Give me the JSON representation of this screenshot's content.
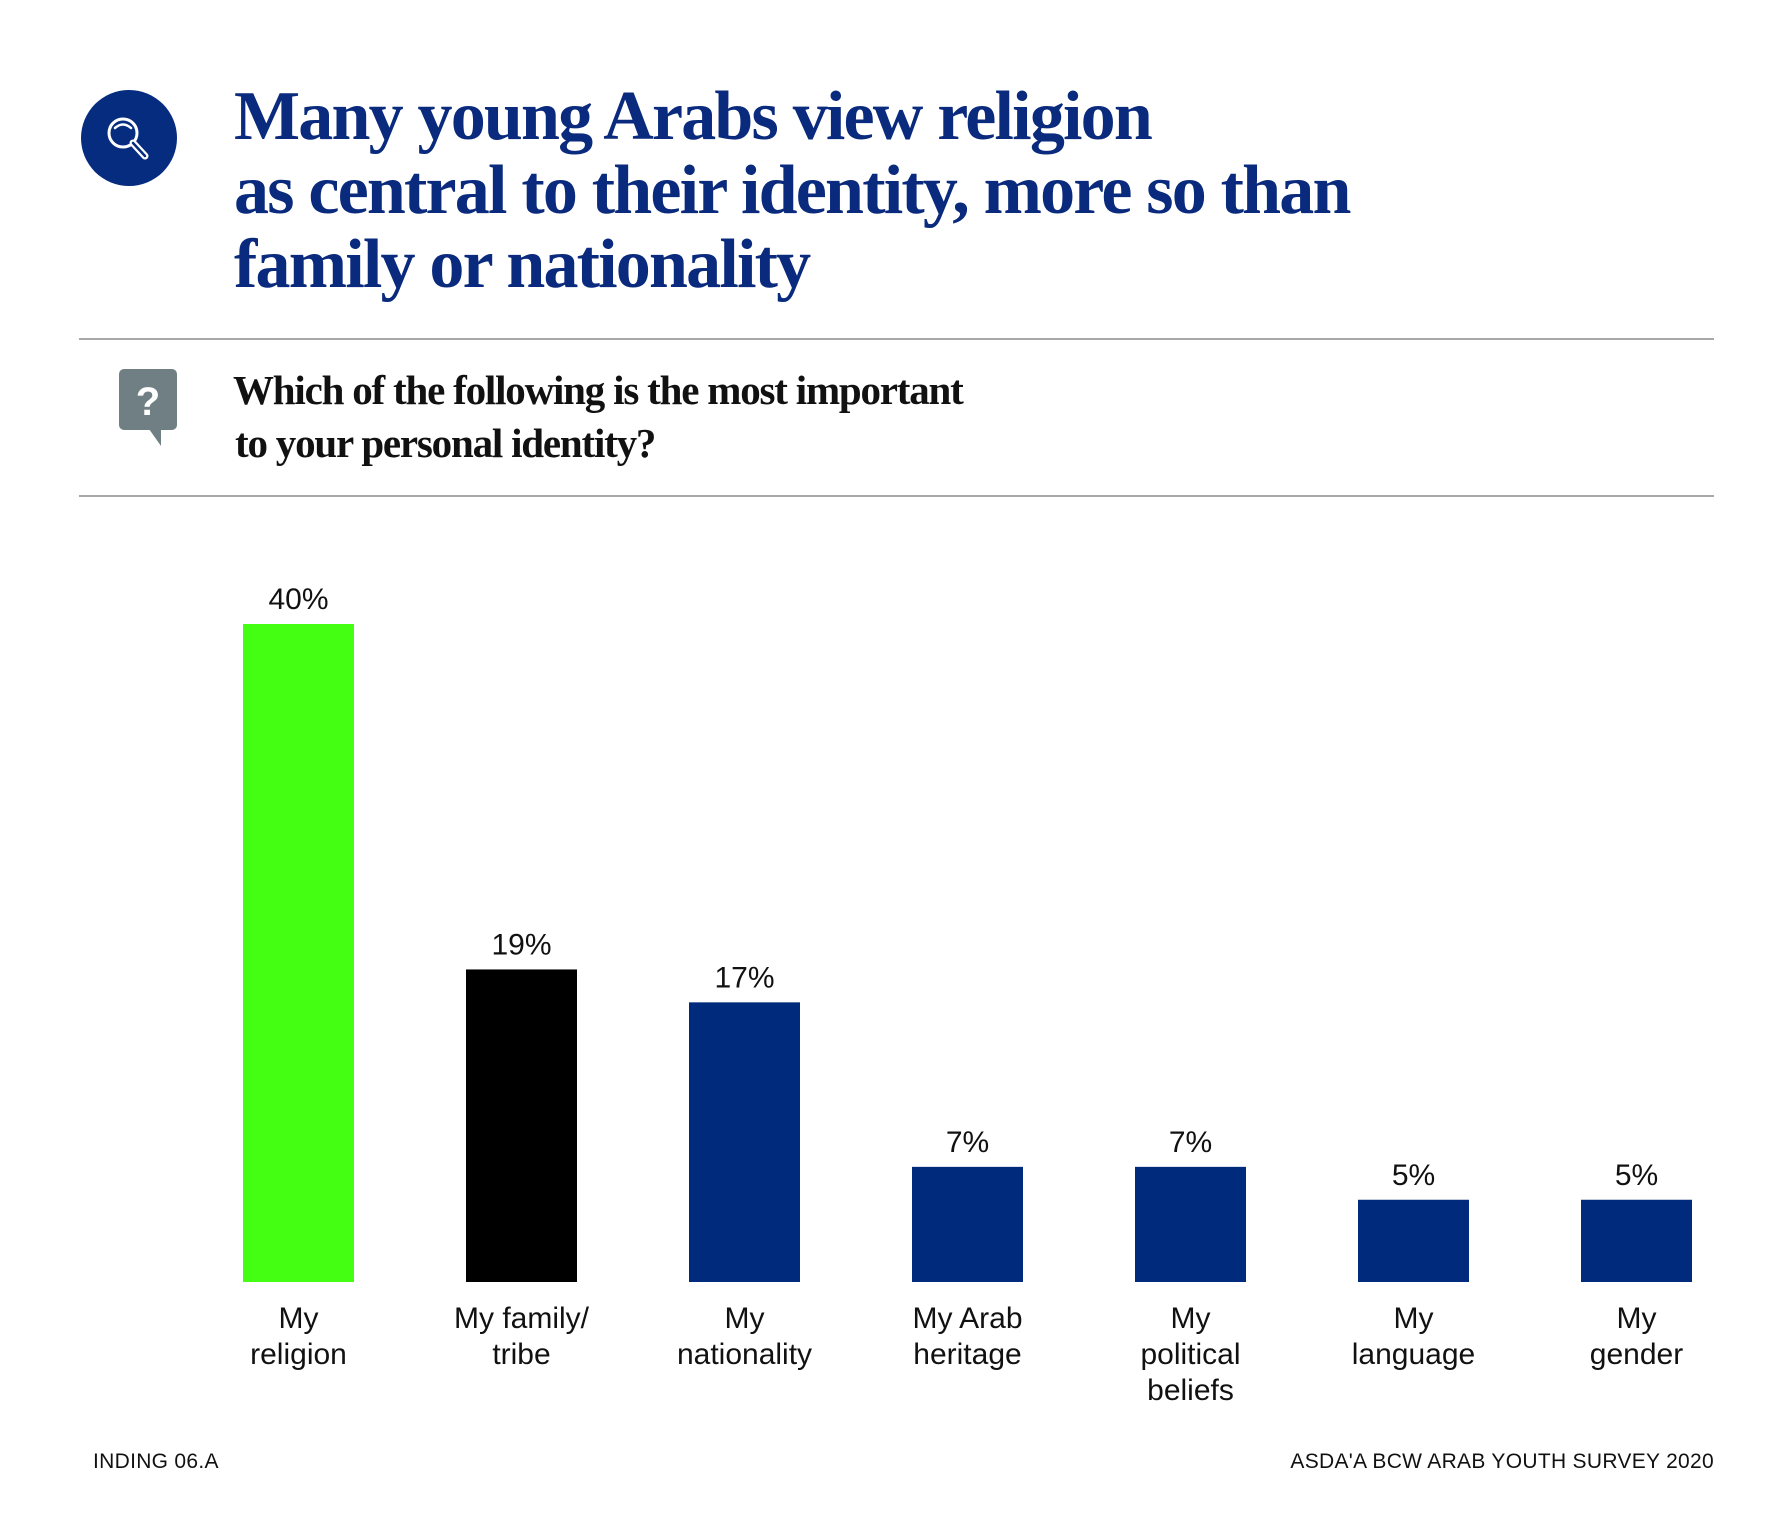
{
  "header": {
    "icon": "magnifying-glass-icon",
    "title_lines": [
      "Many young Arabs view religion",
      "as central to their identity, more so than",
      "family or nationality"
    ]
  },
  "question": {
    "icon": "question-speech-bubble-icon",
    "lines": [
      "Which of the following is the most important",
      "to your personal identity?"
    ]
  },
  "footer": {
    "left": "INDING 06.A",
    "right": "ASDA'A BCW ARAB YOUTH SURVEY 2020"
  },
  "colors": {
    "title": "#0a2a7e",
    "icon_circle": "#062c80",
    "question_icon": "#6f7f83",
    "rule": "#a8a8a8"
  },
  "chart_data": {
    "type": "bar",
    "title": "Which of the following is the most important to your personal identity?",
    "xlabel": "",
    "ylabel": "",
    "ylim": [
      0,
      40
    ],
    "grid": false,
    "legend": "none",
    "value_suffix": "%",
    "categories": [
      [
        "My",
        "religion"
      ],
      [
        "My family/",
        "tribe"
      ],
      [
        "My",
        "nationality"
      ],
      [
        "My Arab",
        "heritage"
      ],
      [
        "My",
        "political",
        "beliefs"
      ],
      [
        "My",
        "language"
      ],
      [
        "My",
        "gender"
      ]
    ],
    "values": [
      40,
      19,
      17,
      7,
      7,
      5,
      5
    ],
    "bar_colors": [
      "#44ff11",
      "#000000",
      "#002a7c",
      "#002a7c",
      "#002a7c",
      "#002a7c",
      "#002a7c"
    ]
  }
}
